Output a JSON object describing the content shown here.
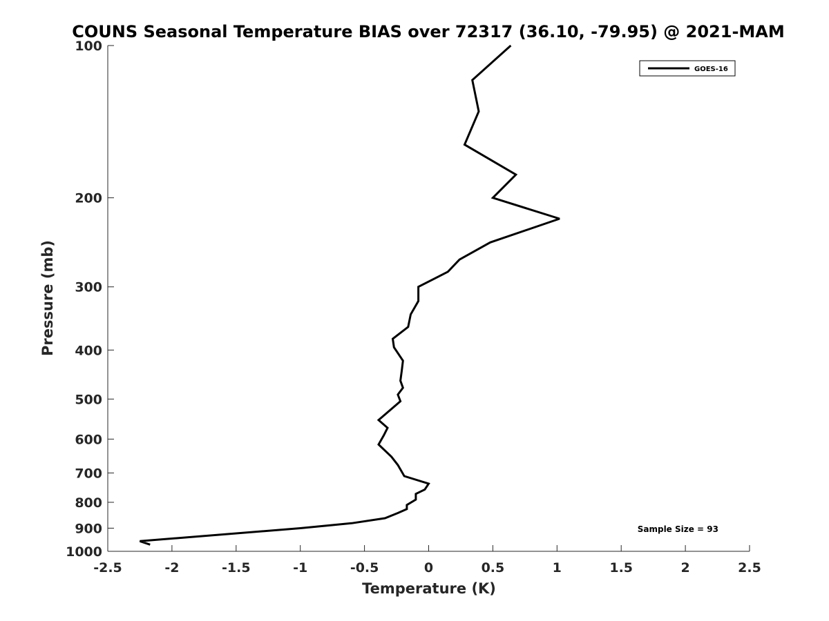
{
  "chart_data": {
    "type": "line",
    "title": "COUNS Seasonal Temperature BIAS over 72317 (36.10, -79.95) @ 2021-MAM",
    "xlabel": "Temperature (K)",
    "ylabel": "Pressure (mb)",
    "xlim": [
      -2.5,
      2.5
    ],
    "ylim": [
      1000,
      100
    ],
    "yscale": "log",
    "x_ticks": [
      -2.5,
      -2,
      -1.5,
      -1,
      -0.5,
      0,
      0.5,
      1,
      1.5,
      2,
      2.5
    ],
    "x_tick_labels": [
      "-2.5",
      "-2",
      "-1.5",
      "-1",
      "-0.5",
      "0",
      "0.5",
      "1",
      "1.5",
      "2",
      "2.5"
    ],
    "y_ticks": [
      100,
      200,
      300,
      400,
      500,
      600,
      700,
      800,
      900,
      1000
    ],
    "y_tick_labels": [
      "100",
      "200",
      "300",
      "400",
      "500",
      "600",
      "700",
      "800",
      "900",
      "1000"
    ],
    "grid": false,
    "legend_position": "top-right",
    "annotation": "Sample Size = 93",
    "series": [
      {
        "name": "GOES-16",
        "color": "#000000",
        "x": [
          0.64,
          0.34,
          0.39,
          0.28,
          0.68,
          0.5,
          1.02,
          0.48,
          0.24,
          0.15,
          -0.08,
          -0.08,
          -0.14,
          -0.16,
          -0.28,
          -0.27,
          -0.2,
          -0.21,
          -0.22,
          -0.2,
          -0.24,
          -0.22,
          -0.39,
          -0.32,
          -0.35,
          -0.39,
          -0.29,
          -0.24,
          -0.19,
          0.0,
          -0.03,
          -0.1,
          -0.1,
          -0.17,
          -0.17,
          -0.24,
          -0.34,
          -0.6,
          -1.0,
          -2.25,
          -2.17
        ],
        "y": [
          100,
          117,
          135,
          157,
          180,
          200,
          220,
          245,
          265,
          280,
          300,
          320,
          340,
          360,
          380,
          395,
          420,
          440,
          460,
          475,
          490,
          505,
          550,
          570,
          590,
          615,
          650,
          675,
          710,
          735,
          755,
          770,
          790,
          810,
          825,
          840,
          860,
          880,
          900,
          955,
          970
        ]
      }
    ]
  }
}
